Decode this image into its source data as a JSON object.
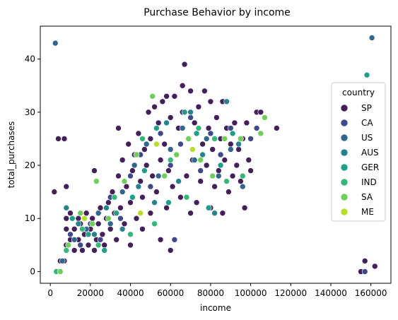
{
  "chart_data": {
    "type": "scatter",
    "title": "Purchase Behavior by income",
    "xlabel": "income",
    "ylabel": "total_purchases",
    "xlim": [
      -5000,
      170000
    ],
    "ylim": [
      -2.2,
      46.2
    ],
    "xticks": [
      0,
      20000,
      40000,
      60000,
      80000,
      100000,
      120000,
      140000,
      160000
    ],
    "yticks": [
      0,
      10,
      20,
      30,
      40
    ],
    "grid": false,
    "legend": {
      "title": "country",
      "placement": "right"
    },
    "series": [
      {
        "name": "SP",
        "color": "#44205b",
        "points": [
          [
            2000,
            15
          ],
          [
            4000,
            25
          ],
          [
            7000,
            25
          ],
          [
            8000,
            16
          ],
          [
            5000,
            2
          ],
          [
            7000,
            2
          ],
          [
            8000,
            5
          ],
          [
            8000,
            8
          ],
          [
            8000,
            10
          ],
          [
            10000,
            6
          ],
          [
            10000,
            11
          ],
          [
            12000,
            4
          ],
          [
            12000,
            8
          ],
          [
            14000,
            6
          ],
          [
            14000,
            10
          ],
          [
            15000,
            9
          ],
          [
            16000,
            4
          ],
          [
            17000,
            7
          ],
          [
            18000,
            11
          ],
          [
            19000,
            5
          ],
          [
            20000,
            8
          ],
          [
            21000,
            10
          ],
          [
            22000,
            4
          ],
          [
            22000,
            19
          ],
          [
            23000,
            6
          ],
          [
            24000,
            9
          ],
          [
            25000,
            12
          ],
          [
            26000,
            7
          ],
          [
            27000,
            5
          ],
          [
            28000,
            10
          ],
          [
            29000,
            13
          ],
          [
            30000,
            8
          ],
          [
            31000,
            15
          ],
          [
            32000,
            11
          ],
          [
            33000,
            6
          ],
          [
            34000,
            18
          ],
          [
            34000,
            27
          ],
          [
            35000,
            12
          ],
          [
            36000,
            21
          ],
          [
            37000,
            9
          ],
          [
            38000,
            16
          ],
          [
            39000,
            24
          ],
          [
            40000,
            13
          ],
          [
            40000,
            5
          ],
          [
            41000,
            19
          ],
          [
            42000,
            22
          ],
          [
            43000,
            10
          ],
          [
            44000,
            26
          ],
          [
            45000,
            17
          ],
          [
            46000,
            14
          ],
          [
            46000,
            8
          ],
          [
            47000,
            23
          ],
          [
            48000,
            20
          ],
          [
            49000,
            30
          ],
          [
            50000,
            11
          ],
          [
            50000,
            25
          ],
          [
            51000,
            18
          ],
          [
            52000,
            31
          ],
          [
            53000,
            15
          ],
          [
            54000,
            28
          ],
          [
            55000,
            21
          ],
          [
            55000,
            6
          ],
          [
            56000,
            32
          ],
          [
            57000,
            24
          ],
          [
            58000,
            12
          ],
          [
            58000,
            33
          ],
          [
            59000,
            19
          ],
          [
            60000,
            29
          ],
          [
            60000,
            4
          ],
          [
            61000,
            16
          ],
          [
            62000,
            33
          ],
          [
            63000,
            22
          ],
          [
            64000,
            27
          ],
          [
            65000,
            14
          ],
          [
            66000,
            30
          ],
          [
            66000,
            35
          ],
          [
            67000,
            39
          ],
          [
            68000,
            18
          ],
          [
            69000,
            25
          ],
          [
            70000,
            34
          ],
          [
            70000,
            11
          ],
          [
            71000,
            21
          ],
          [
            72000,
            28
          ],
          [
            73000,
            13
          ],
          [
            74000,
            31
          ],
          [
            75000,
            17
          ],
          [
            76000,
            24
          ],
          [
            77000,
            34
          ],
          [
            78000,
            20
          ],
          [
            79000,
            27
          ],
          [
            80000,
            12
          ],
          [
            80000,
            32
          ],
          [
            81000,
            23
          ],
          [
            82000,
            16
          ],
          [
            83000,
            29
          ],
          [
            84000,
            19
          ],
          [
            85000,
            25
          ],
          [
            86000,
            11
          ],
          [
            86000,
            32
          ],
          [
            87000,
            21
          ],
          [
            88000,
            27
          ],
          [
            89000,
            15
          ],
          [
            90000,
            24
          ],
          [
            91000,
            18
          ],
          [
            92000,
            28
          ],
          [
            93000,
            20
          ],
          [
            94000,
            23
          ],
          [
            95000,
            17
          ],
          [
            96000,
            25
          ],
          [
            97000,
            12
          ],
          [
            98000,
            28
          ],
          [
            99000,
            21
          ],
          [
            100000,
            19
          ],
          [
            103000,
            30
          ],
          [
            105000,
            30
          ],
          [
            113000,
            27
          ],
          [
            155000,
            0
          ],
          [
            157000,
            2
          ],
          [
            162000,
            1
          ]
        ]
      },
      {
        "name": "CA",
        "color": "#3f4889",
        "points": [
          [
            10000,
            7
          ],
          [
            15000,
            5
          ],
          [
            20000,
            9
          ],
          [
            25000,
            6
          ],
          [
            30000,
            14
          ],
          [
            35000,
            10
          ],
          [
            40000,
            18
          ],
          [
            45000,
            22
          ],
          [
            50000,
            16
          ],
          [
            55000,
            26
          ],
          [
            60000,
            20
          ],
          [
            62000,
            6
          ],
          [
            65000,
            24
          ],
          [
            70000,
            29
          ],
          [
            75000,
            19
          ],
          [
            80000,
            26
          ],
          [
            85000,
            22
          ],
          [
            90000,
            27
          ],
          [
            95000,
            25
          ],
          [
            100000,
            25
          ],
          [
            103000,
            27
          ],
          [
            157000,
            0
          ]
        ]
      },
      {
        "name": "US",
        "color": "#31668e",
        "points": [
          [
            2500,
            43
          ],
          [
            6000,
            2
          ],
          [
            12000,
            6
          ],
          [
            18000,
            8
          ],
          [
            24000,
            11
          ],
          [
            30000,
            9
          ],
          [
            36000,
            15
          ],
          [
            42000,
            20
          ],
          [
            48000,
            24
          ],
          [
            54000,
            18
          ],
          [
            60000,
            23
          ],
          [
            66000,
            27
          ],
          [
            72000,
            21
          ],
          [
            78000,
            25
          ],
          [
            84000,
            18
          ],
          [
            90000,
            23
          ],
          [
            96000,
            16
          ],
          [
            160500,
            44
          ]
        ]
      },
      {
        "name": "AUS",
        "color": "#26828e",
        "points": [
          [
            8000,
            12
          ],
          [
            14000,
            9
          ],
          [
            22000,
            7
          ],
          [
            28000,
            12
          ],
          [
            36000,
            8
          ],
          [
            44000,
            16
          ],
          [
            52000,
            13
          ],
          [
            58000,
            28
          ],
          [
            64000,
            17
          ],
          [
            70000,
            30
          ],
          [
            76000,
            22
          ],
          [
            82000,
            11
          ],
          [
            88000,
            32
          ],
          [
            94000,
            24
          ]
        ]
      },
      {
        "name": "GER",
        "color": "#1f9e89",
        "points": [
          [
            11000,
            10
          ],
          [
            19000,
            7
          ],
          [
            27000,
            4
          ],
          [
            33000,
            11
          ],
          [
            41000,
            14
          ],
          [
            47000,
            19
          ],
          [
            53000,
            27
          ],
          [
            59000,
            13
          ],
          [
            67000,
            30
          ],
          [
            73000,
            26
          ],
          [
            79000,
            12
          ],
          [
            85000,
            20
          ],
          [
            91000,
            26
          ],
          [
            158000,
            37
          ]
        ]
      },
      {
        "name": "IND",
        "color": "#35b779",
        "points": [
          [
            3000,
            0
          ],
          [
            8000,
            4
          ],
          [
            16000,
            8
          ],
          [
            24000,
            5
          ],
          [
            32000,
            14
          ],
          [
            40000,
            7
          ],
          [
            46000,
            25
          ],
          [
            52000,
            9
          ],
          [
            60000,
            21
          ],
          [
            68000,
            14
          ],
          [
            74000,
            27
          ],
          [
            82000,
            25
          ],
          [
            88000,
            17
          ],
          [
            96000,
            18
          ]
        ]
      },
      {
        "name": "SA",
        "color": "#6ece58",
        "points": [
          [
            5000,
            0
          ],
          [
            9000,
            5
          ],
          [
            15000,
            11
          ],
          [
            21000,
            9
          ],
          [
            23000,
            17
          ],
          [
            29000,
            10
          ],
          [
            37000,
            17
          ],
          [
            43000,
            22
          ],
          [
            51000,
            33
          ],
          [
            57000,
            18
          ],
          [
            63000,
            22
          ],
          [
            69000,
            25
          ],
          [
            75000,
            21
          ],
          [
            81000,
            18
          ],
          [
            87000,
            25
          ],
          [
            95000,
            25
          ],
          [
            105000,
            26
          ],
          [
            107000,
            29
          ]
        ]
      },
      {
        "name": "ME",
        "color": "#b5de2b",
        "points": [
          [
            17000,
            10
          ],
          [
            45000,
            11
          ],
          [
            53000,
            24
          ],
          [
            71000,
            23
          ]
        ]
      }
    ]
  }
}
